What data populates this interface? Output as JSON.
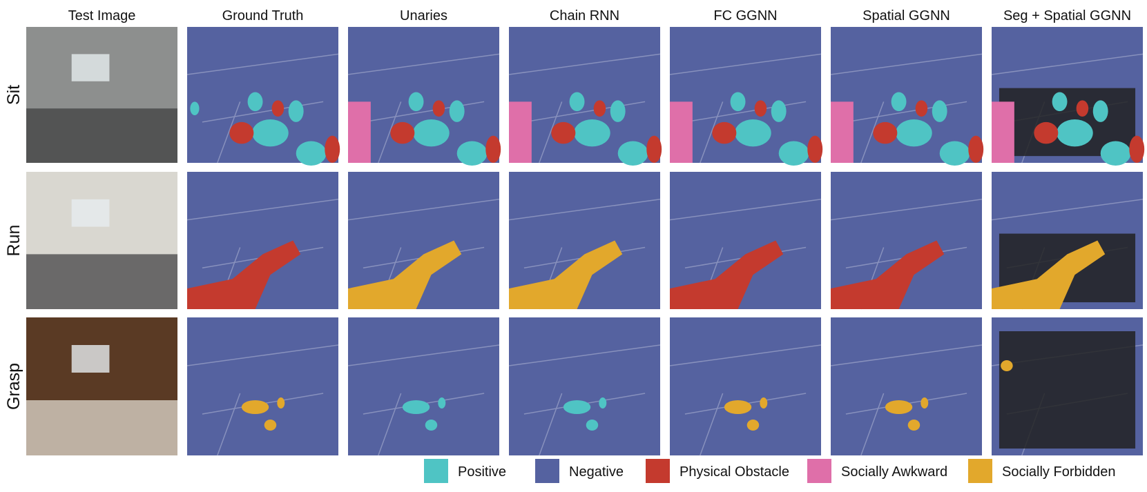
{
  "columns": [
    "Test Image",
    "Ground Truth",
    "Unaries",
    "Chain RNN",
    "FC GGNN",
    "Spatial GGNN",
    "Seg + Spatial GGNN"
  ],
  "rows": [
    "Sit",
    "Run",
    "Grasp"
  ],
  "legend": [
    {
      "label": "Positive",
      "color": "#4fc4c4"
    },
    {
      "label": "Negative",
      "color": "#5562a0"
    },
    {
      "label": "Physical Obstacle",
      "color": "#c43a2e"
    },
    {
      "label": "Socially Awkward",
      "color": "#df6fa9"
    },
    {
      "label": "Socially Forbidden",
      "color": "#e2a82c"
    }
  ]
}
